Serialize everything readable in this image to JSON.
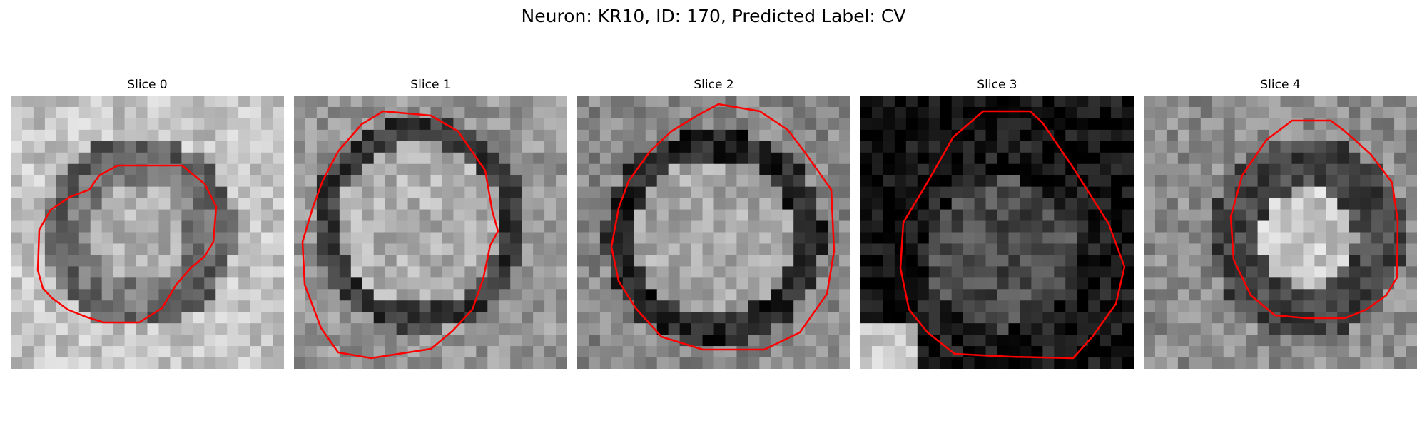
{
  "figure": {
    "title": "Neuron: KR10, ID: 170, Predicted Label: CV"
  },
  "panels": [
    {
      "title": "Slice 0",
      "brightness": "light",
      "contour_color": "#ff0000"
    },
    {
      "title": "Slice 1",
      "brightness": "mid",
      "contour_color": "#ff0000"
    },
    {
      "title": "Slice 2",
      "brightness": "dark-ring",
      "contour_color": "#ff0000"
    },
    {
      "title": "Slice 3",
      "brightness": "dark",
      "contour_color": "#ff0000"
    },
    {
      "title": "Slice 4",
      "brightness": "mid-dark",
      "contour_color": "#ff0000"
    }
  ]
}
